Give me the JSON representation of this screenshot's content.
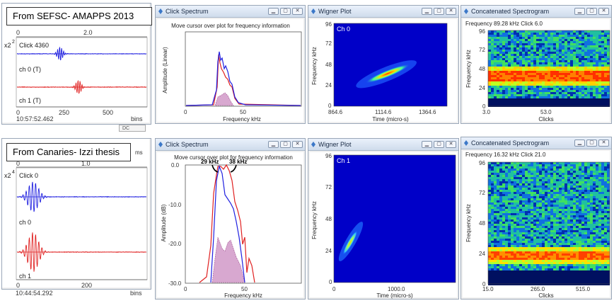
{
  "captions": {
    "top": "From SEFSC- AMAPPS 2013",
    "bottom": "From Canaries- Izzi thesis"
  },
  "icons": [
    "pin-icon",
    "minimize-icon",
    "maximize-icon",
    "close-icon"
  ],
  "colors": {
    "ch0": "#2020e0",
    "ch1": "#e02020",
    "fill": "#d8a8d0"
  },
  "top": {
    "waveform": {
      "scale_prefix": "x2",
      "scale_exp": "2",
      "top_ticks": [
        "0",
        "2.0"
      ],
      "click_label": "Click 4360",
      "ch0_label": "ch 0 (T)",
      "ch1_label": "ch 1 (T)",
      "x_ticks": [
        "0",
        "250",
        "500"
      ],
      "x_unit": "bins",
      "time": "10:57:52.462",
      "tooltip": "DC"
    },
    "spectrum": {
      "title": "Click Spectrum",
      "instruction": "Move cursor over plot for frequency information",
      "ylabel": "Amplitude (Linear)",
      "x_ticks": [
        "0",
        "50"
      ],
      "xlabel": "Frequency kHz"
    },
    "wigner": {
      "title": "Wigner Plot",
      "channel": "Ch 0",
      "y_ticks": [
        "96",
        "72",
        "48",
        "24",
        "0"
      ],
      "ylabel": "Frequency kHz",
      "x_ticks": [
        "864.6",
        "1114.6",
        "1364.6"
      ],
      "xlabel": "Time (micro-s)"
    },
    "spectrogram": {
      "title": "Concatenated Spectrogram",
      "info": "Frequency 89.28 kHz   Click 6.0",
      "y_ticks": [
        "96",
        "72",
        "48",
        "24",
        "0"
      ],
      "ylabel": "Frequency kHz",
      "x_ticks": [
        "3.0",
        "53.0"
      ],
      "xlabel": "Clicks"
    }
  },
  "bottom": {
    "waveform": {
      "scale_prefix": "x2",
      "scale_exp": "4",
      "top_ticks": [
        "0",
        "1.0"
      ],
      "top_unit": "ms",
      "click_label": "Click 0",
      "ch0_label": "ch 0",
      "ch1_label": "ch 1",
      "x_ticks": [
        "0",
        "200"
      ],
      "x_unit": "bins",
      "time": "10:44:54.292"
    },
    "spectrum": {
      "title": "Click Spectrum",
      "instruction": "Move cursor over plot for frequency information",
      "ylabel": "Amplitude (dB)",
      "y_ticks": [
        "0.0",
        "-10.0",
        "-20.0",
        "-30.0"
      ],
      "x_ticks": [
        "0",
        "50"
      ],
      "xlabel": "Frequency kHz",
      "annotation_left": "29 kHz",
      "annotation_right": "38 kHz"
    },
    "wigner": {
      "title": "Wigner Plot",
      "channel": "Ch 1",
      "y_ticks": [
        "96",
        "72",
        "48",
        "24",
        "0"
      ],
      "ylabel": "Frequency kHz",
      "x_ticks": [
        "0",
        "1000.0"
      ],
      "xlabel": "Time (micro-s)"
    },
    "spectrogram": {
      "title": "Concatenated Spectrogram",
      "info": "Frequency 16.32 kHz   Click 21.0",
      "y_ticks": [
        "96",
        "72",
        "48",
        "24",
        "0"
      ],
      "ylabel": "Frequency kHz",
      "x_ticks": [
        "15.0",
        "265.0",
        "515.0"
      ],
      "xlabel": "Clicks"
    }
  }
}
